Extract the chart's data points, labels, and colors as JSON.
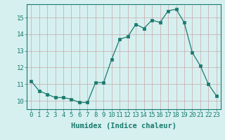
{
  "x": [
    0,
    1,
    2,
    3,
    4,
    5,
    6,
    7,
    8,
    9,
    10,
    11,
    12,
    13,
    14,
    15,
    16,
    17,
    18,
    19,
    20,
    21,
    22,
    23
  ],
  "y": [
    11.2,
    10.6,
    10.4,
    10.2,
    10.2,
    10.1,
    9.9,
    9.9,
    11.1,
    11.1,
    12.5,
    13.7,
    13.85,
    14.6,
    14.35,
    14.85,
    14.7,
    15.4,
    15.5,
    14.7,
    12.9,
    12.1,
    11.0,
    10.3
  ],
  "xlabel": "Humidex (Indice chaleur)",
  "ylim": [
    9.5,
    15.8
  ],
  "xlim": [
    -0.5,
    23.5
  ],
  "yticks": [
    10,
    11,
    12,
    13,
    14,
    15
  ],
  "xticks": [
    0,
    1,
    2,
    3,
    4,
    5,
    6,
    7,
    8,
    9,
    10,
    11,
    12,
    13,
    14,
    15,
    16,
    17,
    18,
    19,
    20,
    21,
    22,
    23
  ],
  "line_color": "#1a7a6e",
  "marker_color": "#1a7a6e",
  "bg_color": "#d6f0f0",
  "grid_color": "#c8a8a8",
  "axis_color": "#1a7a6e",
  "xlabel_fontsize": 7.5,
  "tick_fontsize": 6.5
}
